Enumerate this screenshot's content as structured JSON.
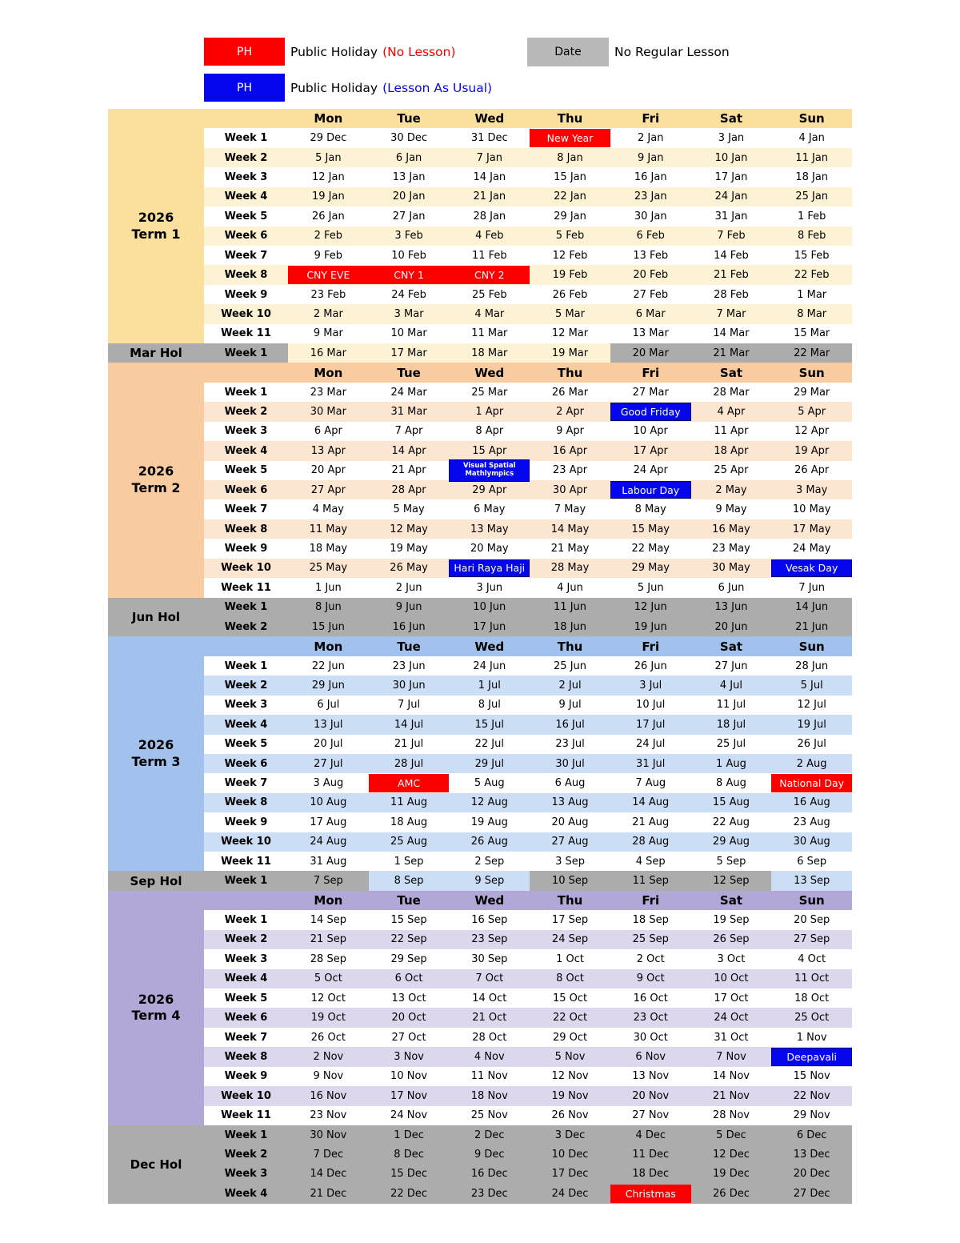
{
  "colors": {
    "white": "#FFFFFF",
    "red": "#FC0000",
    "blue": "#0606EE",
    "gray_row": "#ACACAC",
    "gray_legend": "#B9B9B9",
    "t1_band": "#FBDF9D",
    "t1_alt": "#FDF2D3",
    "t2_band": "#F8CBA1",
    "t2_alt": "#FCE5D1",
    "t3_band": "#A2C2ED",
    "t3_alt": "#CCDDF6",
    "t4_band": "#B2A7D7",
    "t4_alt": "#DDD7ED"
  },
  "legend": {
    "ph_no_lesson": {
      "box": "PH",
      "label": "Public Holiday",
      "note": "(No Lesson)"
    },
    "ph_lesson": {
      "box": "PH",
      "label": "Public Holiday",
      "note": "(Lesson As Usual)"
    },
    "no_regular": {
      "box": "Date",
      "label": "No Regular Lesson"
    }
  },
  "day_headers": [
    "Mon",
    "Tue",
    "Wed",
    "Thu",
    "Fri",
    "Sat",
    "Sun"
  ],
  "sections": [
    {
      "name": "term1",
      "type": "term",
      "theme": "t1",
      "header": true,
      "label_lines": [
        "2026",
        "Term 1"
      ],
      "rows": [
        {
          "week": "Week 1",
          "bg": "white",
          "cells": [
            "29 Dec",
            "30 Dec",
            "31 Dec",
            {
              "t": "New Year",
              "k": "red"
            },
            "2 Jan",
            "3 Jan",
            "4 Jan"
          ]
        },
        {
          "week": "Week 2",
          "bg": "alt",
          "cells": [
            "5 Jan",
            "6 Jan",
            "7 Jan",
            "8 Jan",
            "9 Jan",
            "10 Jan",
            "11 Jan"
          ]
        },
        {
          "week": "Week 3",
          "bg": "white",
          "cells": [
            "12 Jan",
            "13 Jan",
            "14 Jan",
            "15 Jan",
            "16 Jan",
            "17 Jan",
            "18 Jan"
          ]
        },
        {
          "week": "Week 4",
          "bg": "alt",
          "cells": [
            "19 Jan",
            "20 Jan",
            "21 Jan",
            "22 Jan",
            "23 Jan",
            "24 Jan",
            "25 Jan"
          ]
        },
        {
          "week": "Week 5",
          "bg": "white",
          "cells": [
            "26 Jan",
            "27 Jan",
            "28 Jan",
            "29 Jan",
            "30 Jan",
            "31 Jan",
            "1 Feb"
          ]
        },
        {
          "week": "Week 6",
          "bg": "alt",
          "cells": [
            "2 Feb",
            "3 Feb",
            "4 Feb",
            "5 Feb",
            "6 Feb",
            "7 Feb",
            "8 Feb"
          ]
        },
        {
          "week": "Week 7",
          "bg": "white",
          "cells": [
            "9 Feb",
            "10 Feb",
            "11 Feb",
            "12 Feb",
            "13 Feb",
            "14 Feb",
            "15 Feb"
          ]
        },
        {
          "week": "Week 8",
          "bg": "alt",
          "cells": [
            {
              "t": "CNY EVE",
              "k": "red"
            },
            {
              "t": "CNY 1",
              "k": "red"
            },
            {
              "t": "CNY 2",
              "k": "red"
            },
            "19 Feb",
            "20 Feb",
            "21 Feb",
            "22 Feb"
          ]
        },
        {
          "week": "Week 9",
          "bg": "white",
          "cells": [
            "23 Feb",
            "24 Feb",
            "25 Feb",
            "26 Feb",
            "27 Feb",
            "28 Feb",
            "1 Mar"
          ]
        },
        {
          "week": "Week 10",
          "bg": "alt",
          "cells": [
            "2 Mar",
            "3 Mar",
            "4 Mar",
            "5 Mar",
            "6 Mar",
            "7 Mar",
            "8 Mar"
          ]
        },
        {
          "week": "Week 11",
          "bg": "white",
          "cells": [
            "9 Mar",
            "10 Mar",
            "11 Mar",
            "12 Mar",
            "13 Mar",
            "14 Mar",
            "15 Mar"
          ]
        }
      ]
    },
    {
      "name": "mar-hol",
      "type": "hol",
      "theme": "gray",
      "header": false,
      "label_lines": [
        "Mar Hol"
      ],
      "rows": [
        {
          "week": "Week 1",
          "bg": "gray",
          "cells": [
            {
              "t": "16 Mar",
              "k": "cream"
            },
            {
              "t": "17 Mar",
              "k": "cream"
            },
            {
              "t": "18 Mar",
              "k": "cream"
            },
            {
              "t": "19 Mar",
              "k": "cream"
            },
            "20 Mar",
            "21 Mar",
            "22 Mar"
          ]
        }
      ]
    },
    {
      "name": "term2",
      "type": "term",
      "theme": "t2",
      "header": true,
      "label_lines": [
        "2026",
        "Term 2"
      ],
      "rows": [
        {
          "week": "Week 1",
          "bg": "white",
          "cells": [
            "23 Mar",
            "24 Mar",
            "25 Mar",
            "26 Mar",
            "27 Mar",
            "28 Mar",
            "29 Mar"
          ]
        },
        {
          "week": "Week 2",
          "bg": "alt",
          "cells": [
            "30 Mar",
            "31 Mar",
            "1 Apr",
            "2 Apr",
            {
              "t": "Good Friday",
              "k": "blue"
            },
            "4 Apr",
            "5 Apr"
          ]
        },
        {
          "week": "Week 3",
          "bg": "white",
          "cells": [
            "6 Apr",
            "7 Apr",
            "8 Apr",
            "9 Apr",
            "10 Apr",
            "11 Apr",
            "12 Apr"
          ]
        },
        {
          "week": "Week 4",
          "bg": "alt",
          "cells": [
            "13 Apr",
            "14 Apr",
            "15 Apr",
            "16 Apr",
            "17 Apr",
            "18 Apr",
            "19 Apr"
          ]
        },
        {
          "week": "Week 5",
          "bg": "white",
          "cells": [
            "20 Apr",
            "21 Apr",
            {
              "t": "Visual Spatial Mathlympics",
              "k": "blue",
              "small": true
            },
            "23 Apr",
            "24 Apr",
            "25 Apr",
            "26 Apr"
          ]
        },
        {
          "week": "Week 6",
          "bg": "alt",
          "cells": [
            "27 Apr",
            "28 Apr",
            "29 Apr",
            "30 Apr",
            {
              "t": "Labour Day",
              "k": "blue"
            },
            "2 May",
            "3 May"
          ]
        },
        {
          "week": "Week 7",
          "bg": "white",
          "cells": [
            "4 May",
            "5 May",
            "6 May",
            "7 May",
            "8 May",
            "9 May",
            "10 May"
          ]
        },
        {
          "week": "Week 8",
          "bg": "alt",
          "cells": [
            "11 May",
            "12 May",
            "13 May",
            "14 May",
            "15 May",
            "16 May",
            "17 May"
          ]
        },
        {
          "week": "Week 9",
          "bg": "white",
          "cells": [
            "18 May",
            "19 May",
            "20 May",
            "21 May",
            "22 May",
            "23 May",
            "24 May"
          ]
        },
        {
          "week": "Week 10",
          "bg": "alt",
          "cells": [
            "25 May",
            "26 May",
            {
              "t": "Hari Raya Haji",
              "k": "blue"
            },
            "28 May",
            "29 May",
            "30 May",
            {
              "t": "Vesak Day",
              "k": "blue"
            }
          ]
        },
        {
          "week": "Week 11",
          "bg": "white",
          "cells": [
            "1 Jun",
            "2 Jun",
            "3 Jun",
            "4 Jun",
            "5 Jun",
            "6 Jun",
            "7 Jun"
          ]
        }
      ]
    },
    {
      "name": "jun-hol",
      "type": "hol",
      "theme": "gray",
      "header": false,
      "label_lines": [
        "Jun Hol"
      ],
      "rows": [
        {
          "week": "Week 1",
          "bg": "gray",
          "cells": [
            "8 Jun",
            "9 Jun",
            "10 Jun",
            "11 Jun",
            "12 Jun",
            "13 Jun",
            "14 Jun"
          ]
        },
        {
          "week": "Week 2",
          "bg": "gray",
          "cells": [
            "15 Jun",
            "16 Jun",
            "17 Jun",
            "18 Jun",
            "19 Jun",
            "20 Jun",
            "21 Jun"
          ]
        }
      ]
    },
    {
      "name": "term3",
      "type": "term",
      "theme": "t3",
      "header": true,
      "label_lines": [
        "2026",
        "Term 3"
      ],
      "rows": [
        {
          "week": "Week 1",
          "bg": "white",
          "cells": [
            "22 Jun",
            "23 Jun",
            "24 Jun",
            "25 Jun",
            "26 Jun",
            "27 Jun",
            "28 Jun"
          ]
        },
        {
          "week": "Week 2",
          "bg": "alt",
          "cells": [
            "29 Jun",
            "30 Jun",
            "1 Jul",
            "2 Jul",
            "3 Jul",
            "4 Jul",
            "5 Jul"
          ]
        },
        {
          "week": "Week 3",
          "bg": "white",
          "cells": [
            "6 Jul",
            "7 Jul",
            "8 Jul",
            "9 Jul",
            "10 Jul",
            "11 Jul",
            "12 Jul"
          ]
        },
        {
          "week": "Week 4",
          "bg": "alt",
          "cells": [
            "13 Jul",
            "14 Jul",
            "15 Jul",
            "16 Jul",
            "17 Jul",
            "18 Jul",
            "19 Jul"
          ]
        },
        {
          "week": "Week 5",
          "bg": "white",
          "cells": [
            "20 Jul",
            "21 Jul",
            "22 Jul",
            "23 Jul",
            "24 Jul",
            "25 Jul",
            "26 Jul"
          ]
        },
        {
          "week": "Week 6",
          "bg": "alt",
          "cells": [
            "27 Jul",
            "28 Jul",
            "29 Jul",
            "30 Jul",
            "31 Jul",
            "1 Aug",
            "2 Aug"
          ]
        },
        {
          "week": "Week 7",
          "bg": "white",
          "cells": [
            "3 Aug",
            {
              "t": "AMC",
              "k": "red"
            },
            "5 Aug",
            "6 Aug",
            "7 Aug",
            "8 Aug",
            {
              "t": "National Day",
              "k": "red"
            }
          ]
        },
        {
          "week": "Week 8",
          "bg": "alt",
          "cells": [
            "10 Aug",
            "11 Aug",
            "12 Aug",
            "13 Aug",
            "14 Aug",
            "15 Aug",
            "16 Aug"
          ]
        },
        {
          "week": "Week 9",
          "bg": "white",
          "cells": [
            "17 Aug",
            "18 Aug",
            "19 Aug",
            "20 Aug",
            "21 Aug",
            "22 Aug",
            "23 Aug"
          ]
        },
        {
          "week": "Week 10",
          "bg": "alt",
          "cells": [
            "24 Aug",
            "25 Aug",
            "26 Aug",
            "27 Aug",
            "28 Aug",
            "29 Aug",
            "30 Aug"
          ]
        },
        {
          "week": "Week 11",
          "bg": "white",
          "cells": [
            "31 Aug",
            "1 Sep",
            "2 Sep",
            "3 Sep",
            "4 Sep",
            "5 Sep",
            "6 Sep"
          ]
        }
      ]
    },
    {
      "name": "sep-hol",
      "type": "hol",
      "theme": "gray",
      "header": false,
      "label_lines": [
        "Sep Hol"
      ],
      "rows": [
        {
          "week": "Week 1",
          "bg": "gray",
          "cells": [
            "7 Sep",
            {
              "t": "8 Sep",
              "k": "lightblue"
            },
            {
              "t": "9 Sep",
              "k": "lightblue"
            },
            "10 Sep",
            "11 Sep",
            "12 Sep",
            {
              "t": "13 Sep",
              "k": "lightblue"
            }
          ]
        }
      ]
    },
    {
      "name": "term4",
      "type": "term",
      "theme": "t4",
      "header": true,
      "label_lines": [
        "2026",
        "Term 4"
      ],
      "rows": [
        {
          "week": "Week 1",
          "bg": "white",
          "cells": [
            "14 Sep",
            "15 Sep",
            "16 Sep",
            "17 Sep",
            "18 Sep",
            "19 Sep",
            "20 Sep"
          ]
        },
        {
          "week": "Week 2",
          "bg": "alt",
          "cells": [
            "21 Sep",
            "22 Sep",
            "23 Sep",
            "24 Sep",
            "25 Sep",
            "26 Sep",
            "27 Sep"
          ]
        },
        {
          "week": "Week 3",
          "bg": "white",
          "cells": [
            "28 Sep",
            "29 Sep",
            "30 Sep",
            "1 Oct",
            "2 Oct",
            "3 Oct",
            "4 Oct"
          ]
        },
        {
          "week": "Week 4",
          "bg": "alt",
          "cells": [
            "5 Oct",
            "6 Oct",
            "7 Oct",
            "8 Oct",
            "9 Oct",
            "10 Oct",
            "11 Oct"
          ]
        },
        {
          "week": "Week 5",
          "bg": "white",
          "cells": [
            "12 Oct",
            "13 Oct",
            "14 Oct",
            "15 Oct",
            "16 Oct",
            "17 Oct",
            "18 Oct"
          ]
        },
        {
          "week": "Week 6",
          "bg": "alt",
          "cells": [
            "19 Oct",
            "20 Oct",
            "21 Oct",
            "22 Oct",
            "23 Oct",
            "24 Oct",
            "25 Oct"
          ]
        },
        {
          "week": "Week 7",
          "bg": "white",
          "cells": [
            "26 Oct",
            "27 Oct",
            "28 Oct",
            "29 Oct",
            "30 Oct",
            "31 Oct",
            "1 Nov"
          ]
        },
        {
          "week": "Week 8",
          "bg": "alt",
          "cells": [
            "2 Nov",
            "3 Nov",
            "4 Nov",
            "5 Nov",
            "6 Nov",
            "7 Nov",
            {
              "t": "Deepavali",
              "k": "blue"
            }
          ]
        },
        {
          "week": "Week 9",
          "bg": "white",
          "cells": [
            "9 Nov",
            "10 Nov",
            "11 Nov",
            "12 Nov",
            "13 Nov",
            "14 Nov",
            "15 Nov"
          ]
        },
        {
          "week": "Week 10",
          "bg": "alt",
          "cells": [
            "16 Nov",
            "17 Nov",
            "18 Nov",
            "19 Nov",
            "20 Nov",
            "21 Nov",
            "22 Nov"
          ]
        },
        {
          "week": "Week 11",
          "bg": "white",
          "cells": [
            "23 Nov",
            "24 Nov",
            "25 Nov",
            "26 Nov",
            "27 Nov",
            "28 Nov",
            "29 Nov"
          ]
        }
      ]
    },
    {
      "name": "dec-hol",
      "type": "hol",
      "theme": "gray",
      "header": false,
      "label_lines": [
        "Dec Hol"
      ],
      "rows": [
        {
          "week": "Week 1",
          "bg": "gray",
          "cells": [
            "30 Nov",
            "1 Dec",
            "2 Dec",
            "3 Dec",
            "4 Dec",
            "5 Dec",
            "6 Dec"
          ]
        },
        {
          "week": "Week 2",
          "bg": "gray",
          "cells": [
            "7 Dec",
            "8 Dec",
            "9 Dec",
            "10 Dec",
            "11 Dec",
            "12 Dec",
            "13 Dec"
          ]
        },
        {
          "week": "Week 3",
          "bg": "gray",
          "cells": [
            "14 Dec",
            "15 Dec",
            "16 Dec",
            "17 Dec",
            "18 Dec",
            "19 Dec",
            "20 Dec"
          ]
        },
        {
          "week": "Week 4",
          "bg": "gray",
          "cells": [
            "21 Dec",
            "22 Dec",
            "23 Dec",
            "24 Dec",
            {
              "t": "Christmas",
              "k": "red"
            },
            "26 Dec",
            "27 Dec"
          ]
        }
      ]
    }
  ]
}
